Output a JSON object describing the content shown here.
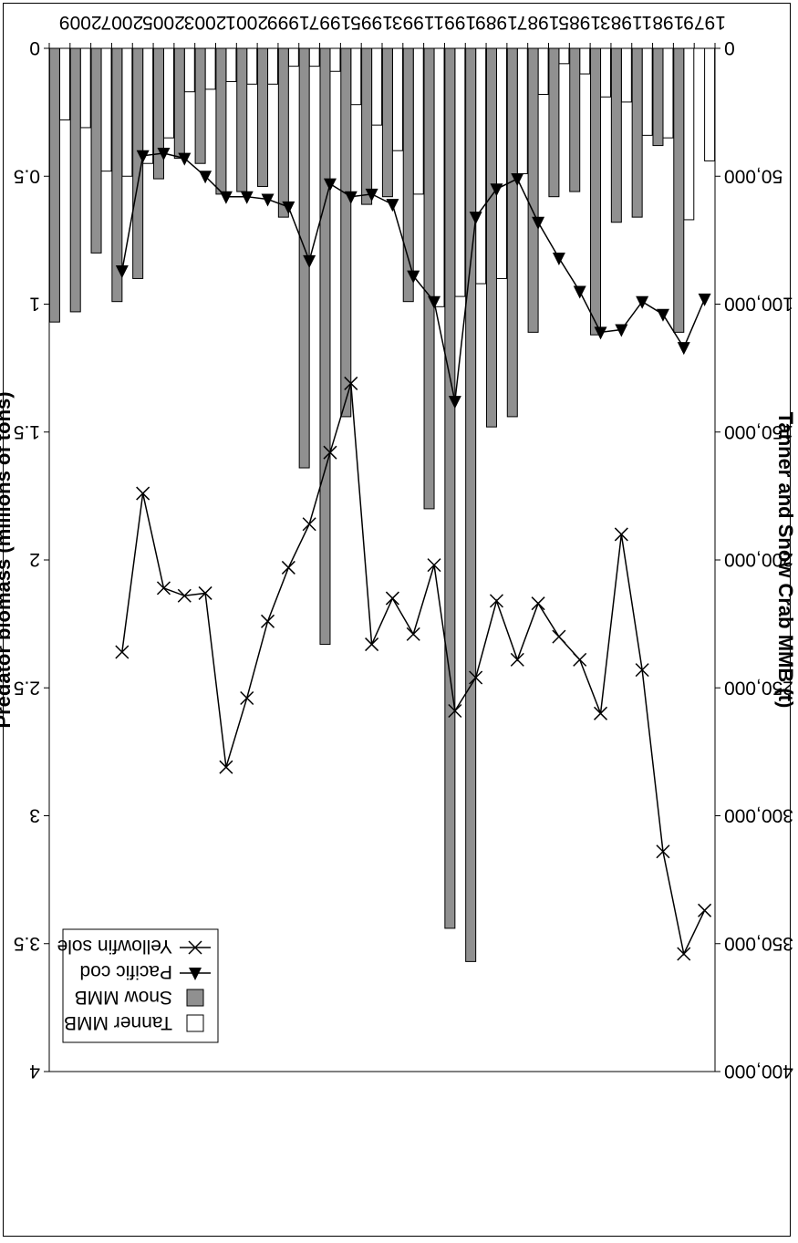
{
  "chart_data": {
    "type": "bar",
    "orientation": "rotated 180 degrees",
    "xlabel": "",
    "ylabel": "Tanner and Snow Crab MMB (t)",
    "y2label": "Predator biomass (millions of tons)",
    "ylim": [
      0,
      400000
    ],
    "y2lim": [
      0,
      4
    ],
    "y_ticks": [
      "0",
      "50,000",
      "100,000",
      "150,000",
      "200,000",
      "250,000",
      "300,000",
      "350,000",
      "400,000"
    ],
    "y2_ticks": [
      "0",
      "0.5",
      "1",
      "1.5",
      "2",
      "2.5",
      "3",
      "3.5",
      "4"
    ],
    "x_tick_labels": [
      "1979",
      "1981",
      "1983",
      "1985",
      "1987",
      "1989",
      "1991",
      "1993",
      "1995",
      "1997",
      "1999",
      "2001",
      "2003",
      "2005",
      "2007",
      "2009"
    ],
    "categories": [
      1979,
      1980,
      1981,
      1982,
      1983,
      1984,
      1985,
      1986,
      1987,
      1988,
      1989,
      1990,
      1991,
      1992,
      1993,
      1994,
      1995,
      1996,
      1997,
      1998,
      1999,
      2000,
      2001,
      2002,
      2003,
      2004,
      2005,
      2006,
      2007,
      2008,
      2009,
      2010
    ],
    "legend": {
      "position": "top-right",
      "entries": [
        "Tanner MMB",
        "Snow MMB",
        "Pacific cod",
        "Yellowfin sole"
      ]
    },
    "grid": false,
    "series": [
      {
        "name": "Tanner MMB",
        "type": "bar",
        "axis": "left",
        "color": "#ffffff",
        "values": [
          44000,
          67000,
          35000,
          34000,
          21000,
          19000,
          10000,
          6000,
          18000,
          49000,
          90000,
          92000,
          97000,
          101000,
          57000,
          40000,
          30000,
          22000,
          9000,
          7000,
          7000,
          14000,
          14000,
          13000,
          16000,
          17000,
          35000,
          45000,
          50000,
          48000,
          31000,
          28000
        ]
      },
      {
        "name": "Snow MMB",
        "type": "bar",
        "axis": "left",
        "color": "#909090",
        "values": [
          0,
          111000,
          38000,
          66000,
          68000,
          112000,
          56000,
          58000,
          111000,
          144000,
          148000,
          357000,
          344000,
          180000,
          99000,
          58000,
          61000,
          144000,
          233000,
          164000,
          66000,
          54000,
          56000,
          57000,
          45000,
          43000,
          51000,
          90000,
          99000,
          80000,
          103000,
          107000
        ]
      },
      {
        "name": "Pacific cod",
        "type": "line",
        "axis": "right",
        "marker": "triangle",
        "x": [
          1979,
          1980,
          1981,
          1982,
          1983,
          1984,
          1985,
          1986,
          1987,
          1988,
          1989,
          1990,
          1991,
          1992,
          1993,
          1994,
          1995,
          1996,
          1997,
          1998,
          1999,
          2000,
          2001,
          2002,
          2003,
          2004,
          2005,
          2006,
          2007
        ],
        "values": [
          0.98,
          1.17,
          1.04,
          0.99,
          1.1,
          1.11,
          0.95,
          0.82,
          0.68,
          0.51,
          0.55,
          0.66,
          1.38,
          0.99,
          0.89,
          0.61,
          0.57,
          0.58,
          0.53,
          0.83,
          0.62,
          0.59,
          0.58,
          0.58,
          0.5,
          0.43,
          0.41,
          0.42,
          0.87
        ]
      },
      {
        "name": "Yellowfin sole",
        "type": "line",
        "axis": "right",
        "marker": "x",
        "x": [
          1979,
          1980,
          1981,
          1982,
          1983,
          1984,
          1985,
          1986,
          1987,
          1988,
          1989,
          1990,
          1991,
          1992,
          1993,
          1994,
          1995,
          1996,
          1997,
          1998,
          1999,
          2000,
          2001,
          2002,
          2003,
          2004,
          2005,
          2006,
          2007
        ],
        "values": [
          3.37,
          3.54,
          3.14,
          2.43,
          1.9,
          2.6,
          2.39,
          2.3,
          2.17,
          2.39,
          2.16,
          2.46,
          2.59,
          2.02,
          2.29,
          2.15,
          2.33,
          1.31,
          1.58,
          1.86,
          2.03,
          2.24,
          2.54,
          2.81,
          2.13,
          2.14,
          2.11,
          1.74,
          2.36
        ]
      }
    ]
  }
}
